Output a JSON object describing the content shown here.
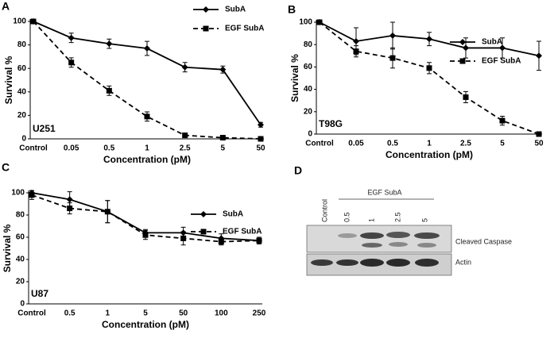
{
  "chart_data": [
    {
      "type": "line",
      "panel_label": "A",
      "annotation": "U251",
      "ylabel": "Survival %",
      "xlabel": "Concentration (pM)",
      "categories": [
        "Control",
        "0.05",
        "0.5",
        "1",
        "2.5",
        "5",
        "50"
      ],
      "ylim": [
        0,
        100
      ],
      "yticks": [
        0,
        20,
        40,
        60,
        80,
        100
      ],
      "legend": "upper right",
      "series": [
        {
          "name": "SubA",
          "color": "#000000",
          "linestyle": "solid",
          "marker": "diamond",
          "values": [
            100,
            86,
            81,
            77,
            61,
            59,
            12
          ],
          "errors": [
            0,
            4,
            4,
            6,
            4,
            3,
            2
          ]
        },
        {
          "name": "EGF SubA",
          "color": "#000000",
          "linestyle": "dashed",
          "marker": "square",
          "values": [
            100,
            65,
            41,
            19,
            3,
            1,
            0
          ],
          "errors": [
            0,
            4,
            4,
            4,
            1,
            1,
            0
          ]
        }
      ]
    },
    {
      "type": "line",
      "panel_label": "B",
      "annotation": "T98G",
      "ylabel": "Survival %",
      "xlabel": "Concentration (pM)",
      "categories": [
        "Control",
        "0.05",
        "0.5",
        "1",
        "2.5",
        "5",
        "50"
      ],
      "ylim": [
        0,
        100
      ],
      "yticks": [
        0,
        20,
        40,
        60,
        80,
        100
      ],
      "legend": "upper right",
      "series": [
        {
          "name": "SubA",
          "color": "#000000",
          "linestyle": "solid",
          "marker": "diamond",
          "values": [
            100,
            83,
            88,
            85,
            77,
            77,
            70
          ],
          "errors": [
            0,
            12,
            12,
            6,
            9,
            9,
            13
          ]
        },
        {
          "name": "EGF SubA",
          "color": "#000000",
          "linestyle": "dashed",
          "marker": "square",
          "values": [
            100,
            74,
            68,
            59,
            33,
            12,
            0
          ],
          "errors": [
            0,
            5,
            9,
            5,
            5,
            4,
            0
          ]
        }
      ]
    },
    {
      "type": "line",
      "panel_label": "C",
      "annotation": "U87",
      "ylabel": "Survival %",
      "xlabel": "Concentration (pM)",
      "categories": [
        "Control",
        "0.5",
        "1",
        "5",
        "50",
        "100",
        "250"
      ],
      "ylim": [
        0,
        100
      ],
      "yticks": [
        0,
        20,
        40,
        60,
        80,
        100
      ],
      "legend": "upper right",
      "series": [
        {
          "name": "SubA",
          "color": "#000000",
          "linestyle": "solid",
          "marker": "diamond",
          "values": [
            100,
            94,
            83,
            64,
            64,
            59,
            57
          ],
          "errors": [
            2,
            7,
            10,
            3,
            5,
            4,
            3
          ]
        },
        {
          "name": "EGF SubA",
          "color": "#000000",
          "linestyle": "dashed",
          "marker": "square",
          "values": [
            98,
            86,
            83,
            62,
            59,
            56,
            57
          ],
          "errors": [
            4,
            5,
            10,
            4,
            6,
            3,
            3
          ]
        }
      ]
    }
  ],
  "blot": {
    "panel_label": "D",
    "group_label": "EGF SubA",
    "lanes": [
      "Control",
      "0.5",
      "1",
      "2.5",
      "5"
    ],
    "bands": [
      "Cleaved Caspase",
      "Actin"
    ]
  }
}
